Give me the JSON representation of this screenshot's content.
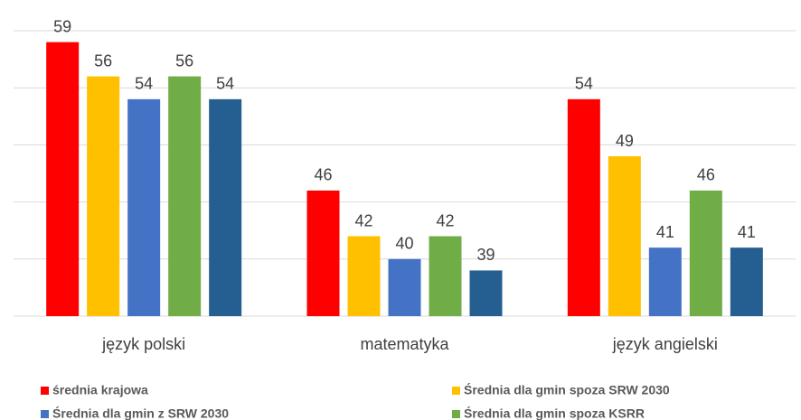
{
  "chart_data": {
    "type": "bar",
    "categories": [
      "język polski",
      "matematyka",
      "język angielski"
    ],
    "series": [
      {
        "name": "średnia krajowa",
        "color": "#ff0000",
        "values": [
          59,
          46,
          54
        ]
      },
      {
        "name": "Średnia dla gmin spoza SRW 2030",
        "color": "#ffc000",
        "values": [
          56,
          42,
          49
        ]
      },
      {
        "name": "Średnia dla gmin z SRW 2030",
        "color": "#4472c4",
        "values": [
          54,
          40,
          41
        ]
      },
      {
        "name": "Średnia dla gmin spoza KSRR",
        "color": "#70ad47",
        "values": [
          56,
          42,
          46
        ]
      },
      {
        "name": null,
        "color": "#255e91",
        "values": [
          54,
          39,
          41
        ]
      }
    ],
    "ylim": [
      35,
      60
    ],
    "yticks": [
      35,
      40,
      45,
      50,
      55,
      60
    ],
    "grid": true
  }
}
